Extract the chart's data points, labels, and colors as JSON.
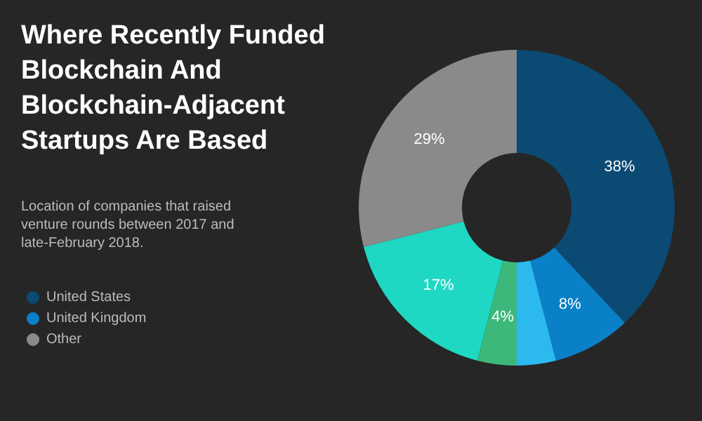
{
  "chart_data": {
    "type": "donut",
    "title": "Where Recently Funded Blockchain And Blockchain-Adjacent Startups Are Based",
    "subtitle": "Location of companies that raised venture rounds between 2017 and late-February 2018.",
    "categories": [
      "United States",
      "United Kingdom",
      null,
      null,
      null,
      "Other"
    ],
    "values": [
      38,
      8,
      4,
      4,
      17,
      29
    ],
    "value_labels": [
      "38%",
      "8%",
      null,
      "4%",
      "17%",
      "29%"
    ],
    "colors": [
      "#0b4a73",
      "#0a80c8",
      "#2cb9ef",
      "#3cb87a",
      "#1ed8c3",
      "#8a8a8a"
    ],
    "legend": "bottom left"
  }
}
